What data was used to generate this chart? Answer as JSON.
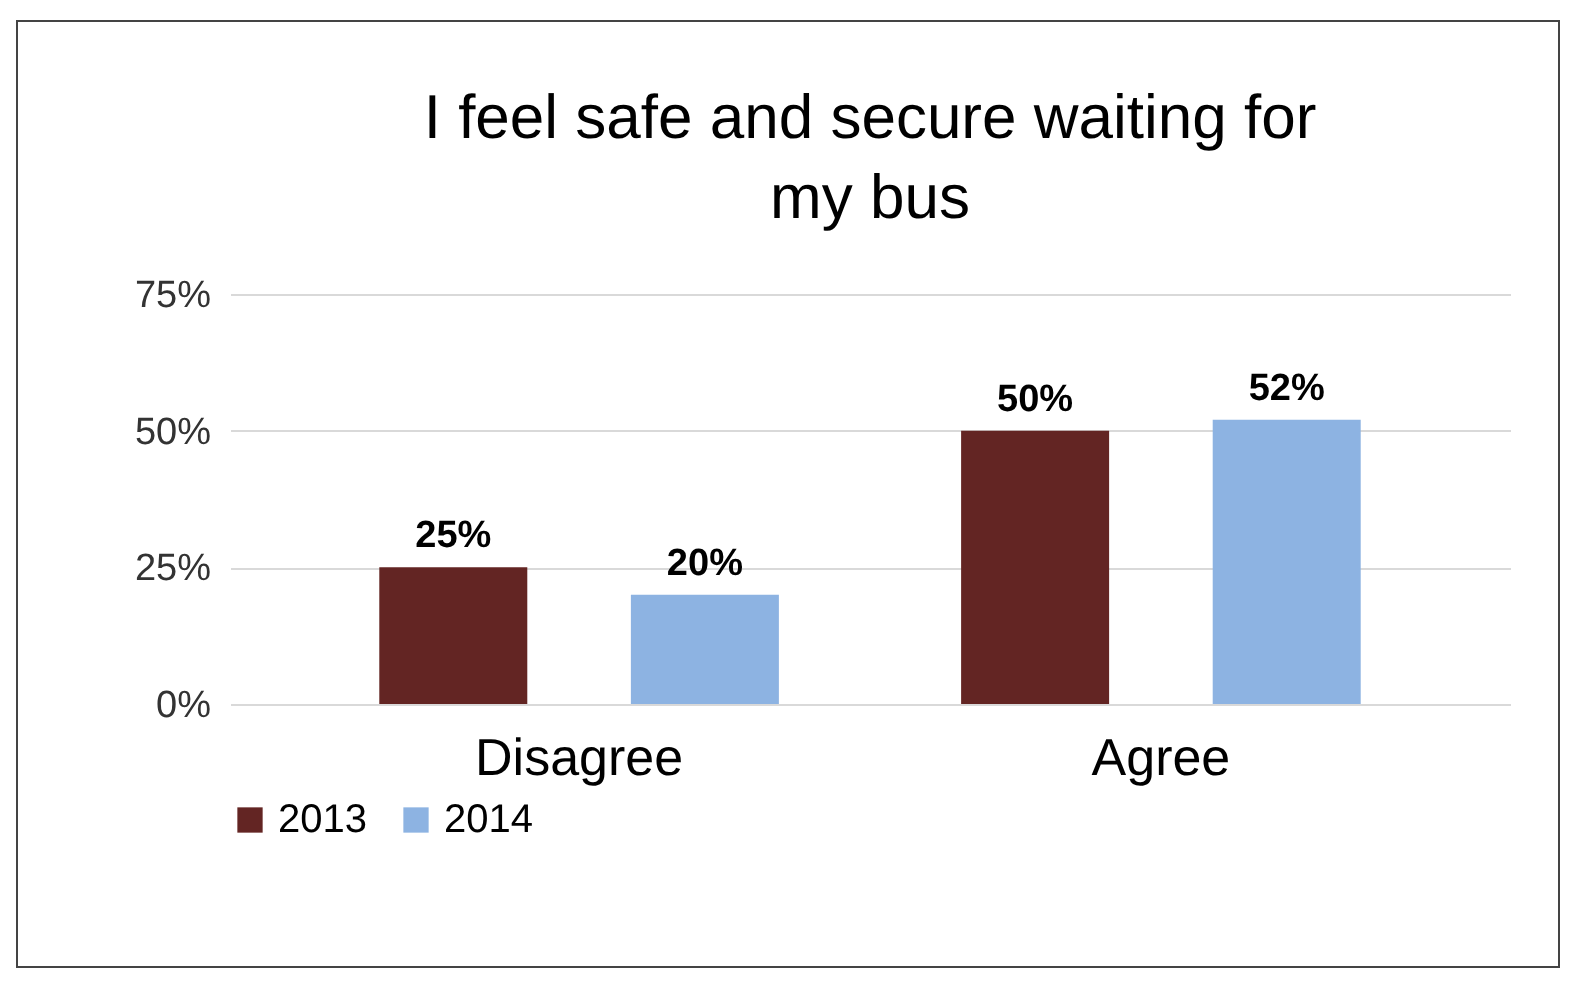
{
  "chart_data": {
    "type": "bar",
    "title": "I feel safe and secure waiting for my bus",
    "categories": [
      "Disagree",
      "Agree"
    ],
    "series": [
      {
        "name": "2013",
        "color": "#632523",
        "values": [
          25,
          50
        ],
        "value_labels": [
          "25%",
          "50%"
        ]
      },
      {
        "name": "2014",
        "color": "#8db3e2",
        "values": [
          20,
          52
        ],
        "value_labels": [
          "20%",
          "52%"
        ]
      }
    ],
    "ylim": [
      0,
      75
    ],
    "yticks": [
      {
        "value": 0,
        "label": "0%"
      },
      {
        "value": 25,
        "label": "25%"
      },
      {
        "value": 50,
        "label": "50%"
      },
      {
        "value": 75,
        "label": "75%"
      }
    ],
    "grid": "y",
    "legend": "bottom"
  }
}
